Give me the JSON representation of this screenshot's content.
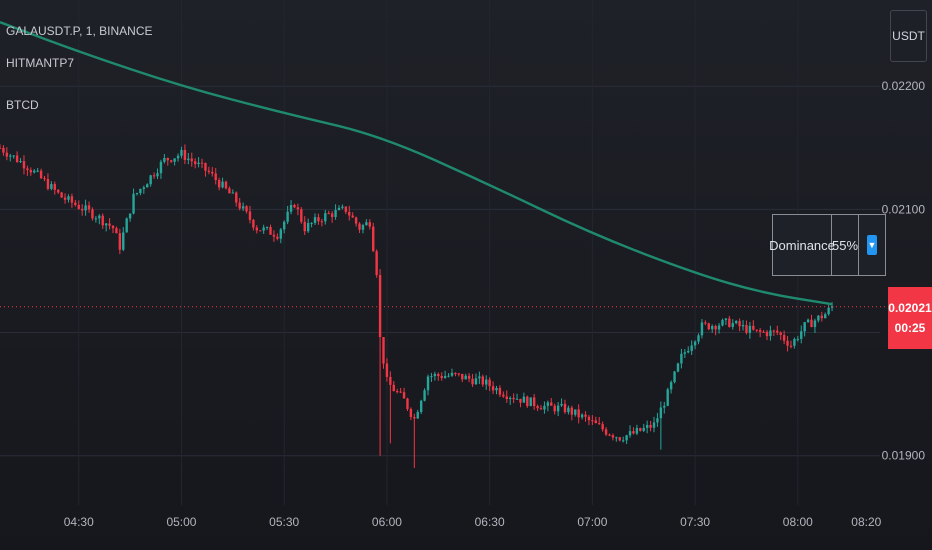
{
  "legend": {
    "symbol": "GALAUSDT.P, 1, BINANCE",
    "indicator1": "HITMANTP7",
    "indicator2": "BTCD"
  },
  "currency_button": "USDT",
  "dominance_table": {
    "label": "Dominance",
    "value": "55%",
    "arrow": "▼"
  },
  "last_price": {
    "price": "0.02021",
    "countdown": "00:25",
    "color": "#f23645"
  },
  "colors": {
    "up": "#26a69a",
    "down": "#f23645",
    "ma": "#1f8a6e"
  },
  "chart_data": {
    "type": "candlestick",
    "y_ticks": [
      "0.02200",
      "0.02100",
      "0.01900"
    ],
    "x_ticks": [
      "04:30",
      "05:00",
      "05:30",
      "06:00",
      "06:30",
      "07:00",
      "07:30",
      "08:00",
      "08:20"
    ],
    "ylim": [
      0.0186,
      0.0227
    ],
    "xlim": [
      "04:07",
      "08:24"
    ],
    "close_path": [
      [
        "04:07",
        0.0215
      ],
      [
        "04:15",
        0.02135
      ],
      [
        "04:25",
        0.0211
      ],
      [
        "04:35",
        0.02095
      ],
      [
        "04:40",
        0.02085
      ],
      [
        "04:42",
        0.0207
      ],
      [
        "04:46",
        0.0211
      ],
      [
        "04:55",
        0.0214
      ],
      [
        "05:00",
        0.02145
      ],
      [
        "05:08",
        0.0213
      ],
      [
        "05:15",
        0.0211
      ],
      [
        "05:22",
        0.02085
      ],
      [
        "05:28",
        0.0208
      ],
      [
        "05:33",
        0.02105
      ],
      [
        "05:36",
        0.02085
      ],
      [
        "05:42",
        0.02095
      ],
      [
        "05:48",
        0.021
      ],
      [
        "05:52",
        0.02085
      ],
      [
        "05:55",
        0.0209
      ],
      [
        "05:57",
        0.0205
      ],
      [
        "05:58",
        0.01995
      ],
      [
        "06:00",
        0.0196
      ],
      [
        "06:05",
        0.01945
      ],
      [
        "06:08",
        0.0193
      ],
      [
        "06:12",
        0.01965
      ],
      [
        "06:20",
        0.01965
      ],
      [
        "06:28",
        0.0196
      ],
      [
        "06:35",
        0.0195
      ],
      [
        "06:40",
        0.01945
      ],
      [
        "06:46",
        0.0194
      ],
      [
        "06:52",
        0.01938
      ],
      [
        "06:58",
        0.0193
      ],
      [
        "07:04",
        0.0192
      ],
      [
        "07:08",
        0.01915
      ],
      [
        "07:12",
        0.01918
      ],
      [
        "07:18",
        0.01925
      ],
      [
        "07:22",
        0.0195
      ],
      [
        "07:26",
        0.0198
      ],
      [
        "07:32",
        0.02005
      ],
      [
        "07:40",
        0.02008
      ],
      [
        "07:48",
        0.02
      ],
      [
        "07:54",
        0.02
      ],
      [
        "07:58",
        0.0199
      ],
      [
        "08:02",
        0.02005
      ],
      [
        "08:08",
        0.02015
      ],
      [
        "08:10",
        0.02021
      ]
    ],
    "ma_path": [
      [
        "04:07",
        0.02252
      ],
      [
        "04:30",
        0.02228
      ],
      [
        "05:00",
        0.022
      ],
      [
        "05:30",
        0.02178
      ],
      [
        "05:58",
        0.0216
      ],
      [
        "06:30",
        0.0212
      ],
      [
        "07:00",
        0.0208
      ],
      [
        "07:30",
        0.02048
      ],
      [
        "07:50",
        0.02032
      ],
      [
        "08:10",
        0.02023
      ]
    ],
    "wicks_down": [
      [
        "05:58",
        0.019
      ],
      [
        "06:01",
        0.0191
      ],
      [
        "06:08",
        0.0189
      ],
      [
        "07:20",
        0.01905
      ]
    ]
  }
}
